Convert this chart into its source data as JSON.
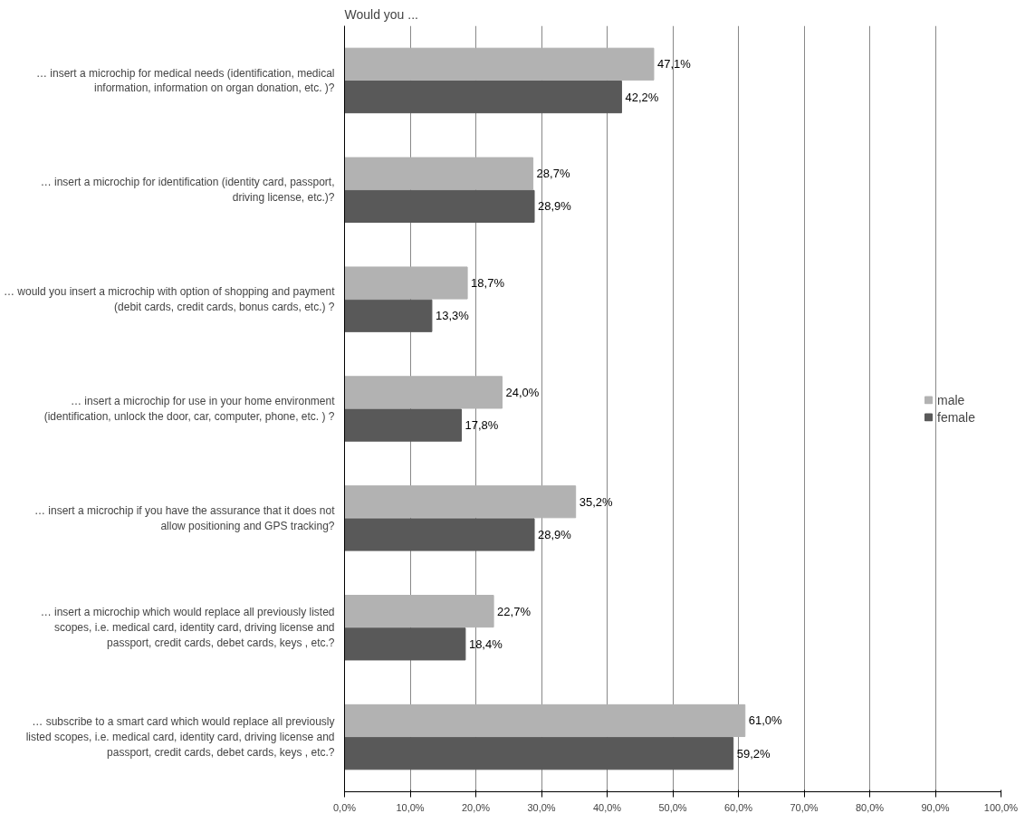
{
  "chart_data": {
    "type": "bar",
    "orientation": "horizontal",
    "title": "Would you ...",
    "categories": [
      "… insert a microchip for medical needs (identification, medical information, information on organ donation, etc. )?",
      "… insert a microchip for identification (identity card, passport, driving license, etc.)?",
      "… would you insert a microchip with option of shopping and payment (debit cards, credit cards, bonus cards, etc.) ?",
      "… insert a microchip for use in your home environment (identification, unlock the door, car, computer, phone, etc. ) ?",
      "… insert a microchip if you have the assurance that it does not allow positioning and GPS tracking?",
      "… insert a microchip which would replace all previously listed scopes, i.e. medical card, identity card, driving license and passport, credit cards, debet cards, keys , etc.?",
      "… subscribe to a smart card which would replace all previously listed scopes, i.e. medical card, identity card, driving license and passport, credit cards, debet cards, keys , etc.?"
    ],
    "series": [
      {
        "name": "male",
        "color": "#b2b2b2",
        "values": [
          47.1,
          28.7,
          18.7,
          24.0,
          35.2,
          22.7,
          61.0
        ],
        "value_labels": [
          "47,1%",
          "28,7%",
          "18,7%",
          "24,0%",
          "35,2%",
          "22,7%",
          "61,0%"
        ]
      },
      {
        "name": "female",
        "color": "#595959",
        "values": [
          42.2,
          28.9,
          13.3,
          17.8,
          28.9,
          18.4,
          59.2
        ],
        "value_labels": [
          "42,2%",
          "28,9%",
          "13,3%",
          "17,8%",
          "28,9%",
          "18,4%",
          "59,2%"
        ]
      }
    ],
    "xlim": [
      0,
      100
    ],
    "xticks": [
      {
        "value": 0,
        "label": "0,0%"
      },
      {
        "value": 10,
        "label": "10,0%"
      },
      {
        "value": 20,
        "label": "20,0%"
      },
      {
        "value": 30,
        "label": "30,0%"
      },
      {
        "value": 40,
        "label": "40,0%"
      },
      {
        "value": 50,
        "label": "50,0%"
      },
      {
        "value": 60,
        "label": "60,0%"
      },
      {
        "value": 70,
        "label": "70,0%"
      },
      {
        "value": 80,
        "label": "80,0%"
      },
      {
        "value": 90,
        "label": "90,0%"
      },
      {
        "value": 100,
        "label": "100,0%"
      }
    ],
    "grid": "x",
    "legend": "right"
  }
}
